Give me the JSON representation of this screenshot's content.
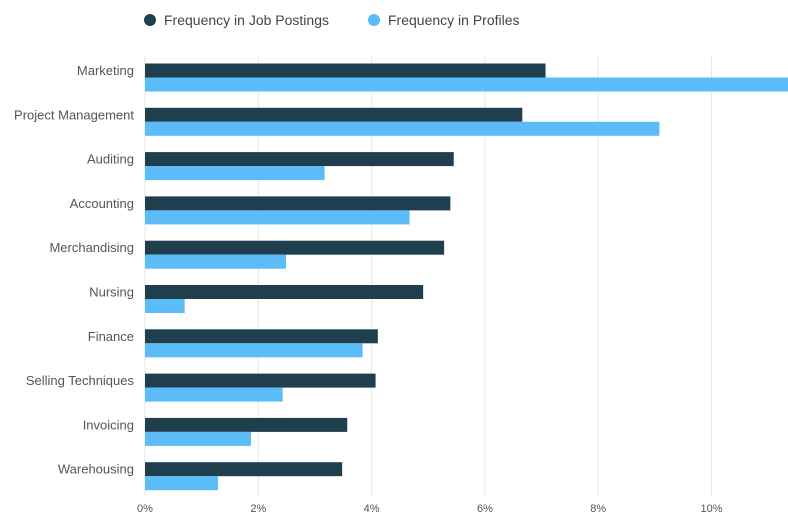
{
  "chart_data": {
    "type": "bar",
    "orientation": "horizontal",
    "categories": [
      "Marketing",
      "Project Management",
      "Auditing",
      "Accounting",
      "Merchandising",
      "Nursing",
      "Finance",
      "Selling Techniques",
      "Invoicing",
      "Warehousing"
    ],
    "series": [
      {
        "name": "Frequency in Job Postings",
        "color": "#1f3f4f",
        "values": [
          7.07,
          6.66,
          5.45,
          5.39,
          5.28,
          4.91,
          4.11,
          4.07,
          3.57,
          3.48
        ]
      },
      {
        "name": "Frequency in Profiles",
        "color": "#5bbcf7",
        "values": [
          11.5,
          9.08,
          3.17,
          4.67,
          2.49,
          0.7,
          3.84,
          2.43,
          1.87,
          1.29
        ]
      }
    ],
    "xlim": [
      0,
      11.35
    ],
    "x_ticks": [
      "0%",
      "2%",
      "4%",
      "6%",
      "8%",
      "10%"
    ],
    "x_tick_values": [
      0,
      2,
      4,
      6,
      8,
      10
    ],
    "grid": "vertical-lines",
    "legend": "top-left"
  },
  "colors": {
    "gridline": "#e6e6e6",
    "axis_label": "#555555",
    "legend_text": "#444444"
  }
}
